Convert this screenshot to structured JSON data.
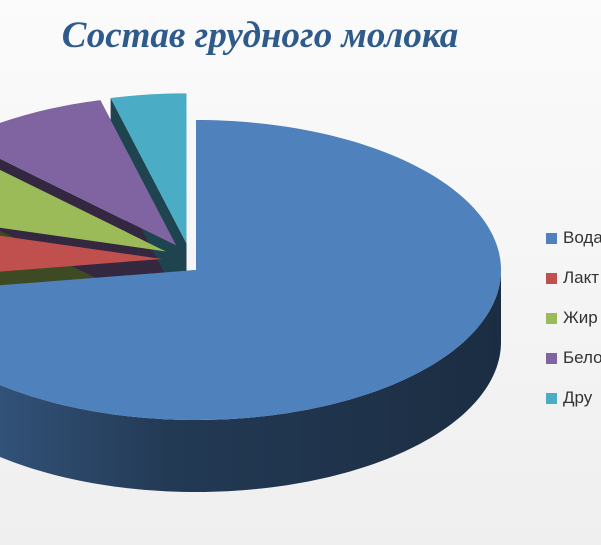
{
  "chart_data": {
    "type": "pie",
    "style": "3d-exploded",
    "title": "Состав грудного молока",
    "slices": [
      {
        "label": "Вода",
        "value": 72.5,
        "color": "#4f81bd"
      },
      {
        "label": "Лакт",
        "value": 7,
        "color": "#c0504d"
      },
      {
        "label": "Жир",
        "value": 8,
        "color": "#9bbb59"
      },
      {
        "label": "Бело",
        "value": 8.5,
        "color": "#8064a2"
      },
      {
        "label": "Дру",
        "value": 4,
        "color": "#4bacc6"
      }
    ],
    "legend_position": "right"
  }
}
